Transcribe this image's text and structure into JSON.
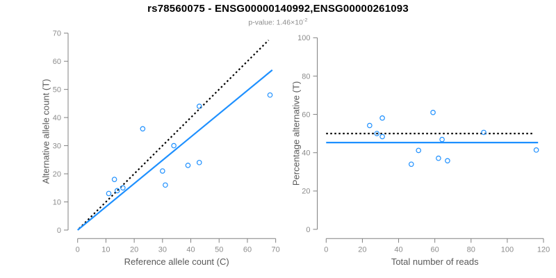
{
  "header": {
    "title": "rs78560075 - ENSG00000140992,ENSG00000261093",
    "subtitle_base": "p-value: 1.46×10",
    "subtitle_exponent": "-2"
  },
  "colors": {
    "accent_blue": "#1E90FF",
    "dotted_line": "#000000",
    "axis_line": "#808080",
    "tick_label": "#8c8c8c",
    "axis_label": "#595959",
    "title": "#000000",
    "subtitle": "#8c8c8c",
    "background": "#ffffff"
  },
  "chart_data": [
    {
      "type": "scatter",
      "name": "allele-counts-scatter",
      "xlabel": "Reference allele count (C)",
      "ylabel": "Alternative allele count (T)",
      "xlim": [
        0,
        70
      ],
      "ylim": [
        0,
        70
      ],
      "xticks": [
        0,
        10,
        20,
        30,
        40,
        50,
        60,
        70
      ],
      "yticks": [
        0,
        10,
        20,
        30,
        40,
        50,
        60,
        70
      ],
      "grid": false,
      "points": [
        [
          11,
          13
        ],
        [
          13,
          18
        ],
        [
          14,
          14
        ],
        [
          16,
          15
        ],
        [
          23,
          36
        ],
        [
          30,
          21
        ],
        [
          31,
          16
        ],
        [
          34,
          30
        ],
        [
          39,
          23
        ],
        [
          43,
          24
        ],
        [
          43,
          44
        ],
        [
          68,
          48
        ]
      ],
      "lines": [
        {
          "name": "identity-line",
          "style": "dotted",
          "color": "#000000",
          "x1": 0.5,
          "y1": 0.5,
          "x2": 67.5,
          "y2": 67.5
        },
        {
          "name": "regression-line",
          "style": "solid",
          "color": "#1E90FF",
          "x1": 0,
          "y1": 0,
          "x2": 68.8,
          "y2": 56.9
        }
      ]
    },
    {
      "type": "scatter",
      "name": "percentage-alternative-scatter",
      "xlabel": "Total number of reads",
      "ylabel": "Percentage alternative (T)",
      "xlim": [
        0,
        120
      ],
      "ylim": [
        0,
        100
      ],
      "xticks": [
        0,
        20,
        40,
        60,
        80,
        100,
        120
      ],
      "yticks": [
        0,
        20,
        40,
        60,
        80,
        100
      ],
      "grid": false,
      "points": [
        [
          24,
          54.2
        ],
        [
          28,
          50.0
        ],
        [
          31,
          58.1
        ],
        [
          31,
          48.4
        ],
        [
          47,
          34.0
        ],
        [
          51,
          41.2
        ],
        [
          59,
          61.0
        ],
        [
          62,
          37.1
        ],
        [
          64,
          46.9
        ],
        [
          67,
          35.8
        ],
        [
          87,
          50.6
        ],
        [
          116,
          41.4
        ]
      ],
      "lines": [
        {
          "name": "expected-50pct-line",
          "style": "dotted",
          "color": "#000000",
          "x1": 0,
          "y1": 50,
          "x2": 115,
          "y2": 50
        },
        {
          "name": "mean-percentage-line",
          "style": "solid",
          "color": "#1E90FF",
          "x1": 0,
          "y1": 45.3,
          "x2": 117,
          "y2": 45.3
        }
      ]
    }
  ]
}
